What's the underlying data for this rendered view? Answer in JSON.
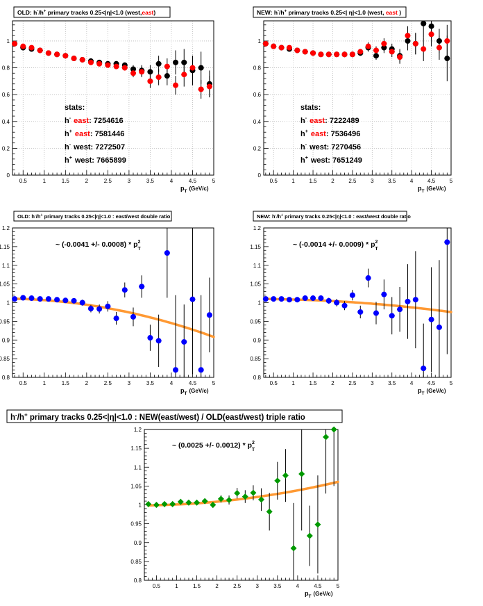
{
  "colors": {
    "black": "#000000",
    "red": "#ff0000",
    "blue": "#0000ff",
    "green": "#009900",
    "fit": "#ff9933",
    "grid": "#bbbbbb"
  },
  "panels": [
    {
      "key": "tl",
      "title_parts": [
        {
          "t": "OLD: h",
          "s": "n"
        },
        {
          "t": "-",
          "s": "sup"
        },
        {
          "t": "/h",
          "s": "n"
        },
        {
          "t": "+",
          "s": "sup"
        },
        {
          "t": " primary tracks 0.25<|η|<1.0 (west,",
          "s": "n"
        },
        {
          "t": "east",
          "s": "red"
        },
        {
          "t": ")",
          "s": "n"
        }
      ],
      "xaxis_label": "p",
      "xaxis_sub": "T",
      "xaxis_unit": "(GeV/c)",
      "stats": {
        "heading": "stats:",
        "rows": [
          {
            "pre": "h",
            "sign": "-",
            "word": "east",
            "value": "7254616",
            "word_red": true
          },
          {
            "pre": "h",
            "sign": "+",
            "word": "east",
            "value": "7581446",
            "word_red": true
          },
          {
            "pre": "h",
            "sign": "-",
            "word": "west",
            "value": "7272507",
            "word_red": false
          },
          {
            "pre": "h",
            "sign": "+",
            "word": "west",
            "value": "7665899",
            "word_red": false
          }
        ]
      }
    },
    {
      "key": "tr",
      "title_parts": [
        {
          "t": "NEW: h",
          "s": "n"
        },
        {
          "t": "-",
          "s": "sup"
        },
        {
          "t": "/h",
          "s": "n"
        },
        {
          "t": "+",
          "s": "sup"
        },
        {
          "t": " primary tracks 0.25<|   η|<1.0 (west,  ",
          "s": "n"
        },
        {
          "t": "east",
          "s": "red"
        },
        {
          "t": " )",
          "s": "n"
        }
      ],
      "xaxis_label": "p",
      "xaxis_sub": "T",
      "xaxis_unit": "(GeV/c)",
      "stats": {
        "heading": "stats:",
        "rows": [
          {
            "pre": "h",
            "sign": "-",
            "word": "east",
            "value": "7222489",
            "word_red": true
          },
          {
            "pre": "h",
            "sign": "+",
            "word": "east",
            "value": "7536496",
            "word_red": true
          },
          {
            "pre": "h",
            "sign": "-",
            "word": "west",
            "value": "7270456",
            "word_red": false
          },
          {
            "pre": "h",
            "sign": "+",
            "word": "west",
            "value": "7651249",
            "word_red": false
          }
        ]
      }
    },
    {
      "key": "ml",
      "title_parts": [
        {
          "t": "OLD: h",
          "s": "n"
        },
        {
          "t": "-",
          "s": "sup"
        },
        {
          "t": "/h",
          "s": "n"
        },
        {
          "t": "+",
          "s": "sup"
        },
        {
          "t": " primary tracks 0.25<|η|<1.0 : east/west double ratio",
          "s": "n"
        }
      ],
      "xaxis_label": "p",
      "xaxis_sub": "T",
      "xaxis_unit": "(GeV/c)",
      "fit_text": "~ (-0.0041 +/- 0.0008) * p",
      "fit_sup": "2",
      "fit_sub": "T"
    },
    {
      "key": "mr",
      "title_parts": [
        {
          "t": "NEW: h",
          "s": "n"
        },
        {
          "t": "-",
          "s": "sup"
        },
        {
          "t": "/h",
          "s": "n"
        },
        {
          "t": "+",
          "s": "sup"
        },
        {
          "t": " primary tracks 0.25<|η|<1.0 : east/west double ratio",
          "s": "n"
        }
      ],
      "xaxis_label": "p",
      "xaxis_sub": "T",
      "xaxis_unit": "(GeV/c)",
      "fit_text": "~ (-0.0014 +/- 0.0009) * p",
      "fit_sup": "2",
      "fit_sub": "T"
    },
    {
      "key": "bot",
      "title_parts": [
        {
          "t": "h",
          "s": "n"
        },
        {
          "t": "-",
          "s": "sup"
        },
        {
          "t": "/h",
          "s": "n"
        },
        {
          "t": "+",
          "s": "sup"
        },
        {
          "t": " primary tracks 0.25<|η|<1.0 : NEW(east/west) / OLD(east/west) triple ratio",
          "s": "n"
        }
      ],
      "xaxis_label": "p",
      "xaxis_sub": "T",
      "xaxis_unit": "(GeV/c)",
      "fit_text": "~ (0.0025 +/- 0.0012) * p",
      "fit_sup": "2",
      "fit_sub": "T"
    }
  ],
  "chart_data": [
    {
      "type": "scatter",
      "panel": "tl",
      "xlim": [
        0.25,
        5.0
      ],
      "ylim": [
        0,
        1.15
      ],
      "xticks": [
        0.5,
        1,
        1.5,
        2,
        2.5,
        3,
        3.5,
        4,
        4.5,
        5
      ],
      "yticks": [
        0,
        0.2,
        0.4,
        0.6,
        0.8,
        1
      ],
      "grid": true,
      "series": [
        {
          "color": "black",
          "x": [
            0.3,
            0.5,
            0.7,
            0.9,
            1.1,
            1.3,
            1.5,
            1.7,
            1.9,
            2.1,
            2.3,
            2.5,
            2.7,
            2.9,
            3.1,
            3.3,
            3.5,
            3.7,
            3.9,
            4.1,
            4.3,
            4.5,
            4.7,
            4.9
          ],
          "y": [
            0.98,
            0.95,
            0.94,
            0.93,
            0.91,
            0.9,
            0.89,
            0.87,
            0.86,
            0.85,
            0.84,
            0.83,
            0.83,
            0.82,
            0.79,
            0.78,
            0.77,
            0.83,
            0.74,
            0.84,
            0.84,
            0.78,
            0.8,
            0.68
          ],
          "err": [
            0.01,
            0.01,
            0.01,
            0.01,
            0.01,
            0.01,
            0.01,
            0.01,
            0.01,
            0.01,
            0.02,
            0.02,
            0.02,
            0.02,
            0.03,
            0.04,
            0.05,
            0.06,
            0.07,
            0.09,
            0.1,
            0.11,
            0.12,
            0.1
          ]
        },
        {
          "color": "red",
          "x": [
            0.3,
            0.5,
            0.7,
            0.9,
            1.1,
            1.3,
            1.5,
            1.7,
            1.9,
            2.1,
            2.3,
            2.5,
            2.7,
            2.9,
            3.1,
            3.3,
            3.5,
            3.7,
            3.9,
            4.1,
            4.3,
            4.5,
            4.7,
            4.9
          ],
          "y": [
            0.98,
            0.96,
            0.95,
            0.93,
            0.91,
            0.9,
            0.89,
            0.87,
            0.86,
            0.84,
            0.83,
            0.82,
            0.81,
            0.8,
            0.76,
            0.77,
            0.7,
            0.73,
            0.81,
            0.67,
            0.75,
            0.8,
            0.64,
            0.66
          ],
          "err": [
            0.01,
            0.01,
            0.01,
            0.01,
            0.01,
            0.01,
            0.01,
            0.01,
            0.01,
            0.01,
            0.02,
            0.02,
            0.02,
            0.02,
            0.03,
            0.04,
            0.05,
            0.06,
            0.06,
            0.07,
            0.09,
            0.09,
            0.07,
            0.08
          ]
        }
      ]
    },
    {
      "type": "scatter",
      "panel": "tr",
      "xlim": [
        0.25,
        5.0
      ],
      "ylim": [
        0,
        1.15
      ],
      "xticks": [
        0.5,
        1,
        1.5,
        2,
        2.5,
        3,
        3.5,
        4,
        4.5,
        5
      ],
      "yticks": [
        0,
        0.2,
        0.4,
        0.6,
        0.8,
        1
      ],
      "grid": true,
      "series": [
        {
          "color": "black",
          "x": [
            0.3,
            0.5,
            0.7,
            0.9,
            1.1,
            1.3,
            1.5,
            1.7,
            1.9,
            2.1,
            2.3,
            2.5,
            2.7,
            2.9,
            3.1,
            3.3,
            3.5,
            3.7,
            3.9,
            4.1,
            4.3,
            4.5,
            4.7,
            4.9
          ],
          "y": [
            0.98,
            0.96,
            0.95,
            0.94,
            0.93,
            0.92,
            0.91,
            0.9,
            0.9,
            0.9,
            0.9,
            0.9,
            0.91,
            0.95,
            0.89,
            0.95,
            0.94,
            0.89,
            1.0,
            0.98,
            1.13,
            1.11,
            1.0,
            0.87
          ],
          "err": [
            0.01,
            0.01,
            0.01,
            0.01,
            0.01,
            0.01,
            0.01,
            0.01,
            0.01,
            0.01,
            0.02,
            0.02,
            0.02,
            0.03,
            0.03,
            0.04,
            0.04,
            0.05,
            0.07,
            0.08,
            0.1,
            0.09,
            0.09,
            0.17
          ]
        },
        {
          "color": "red",
          "x": [
            0.3,
            0.5,
            0.7,
            0.9,
            1.1,
            1.3,
            1.5,
            1.7,
            1.9,
            2.1,
            2.3,
            2.5,
            2.7,
            2.9,
            3.1,
            3.3,
            3.5,
            3.7,
            3.9,
            4.1,
            4.3,
            4.5,
            4.7,
            4.9
          ],
          "y": [
            0.98,
            0.96,
            0.95,
            0.95,
            0.93,
            0.92,
            0.91,
            0.9,
            0.9,
            0.9,
            0.9,
            0.9,
            0.92,
            0.96,
            0.93,
            0.98,
            0.92,
            0.88,
            1.04,
            0.98,
            0.94,
            1.05,
            0.95,
            1.0
          ],
          "err": [
            0.01,
            0.01,
            0.01,
            0.01,
            0.01,
            0.01,
            0.01,
            0.01,
            0.01,
            0.01,
            0.02,
            0.02,
            0.02,
            0.03,
            0.03,
            0.04,
            0.04,
            0.05,
            0.07,
            0.08,
            0.09,
            0.09,
            0.09,
            0.12
          ]
        }
      ]
    },
    {
      "type": "scatter",
      "panel": "ml",
      "xlim": [
        0.25,
        5.0
      ],
      "ylim": [
        0.8,
        1.2
      ],
      "xticks": [
        0.5,
        1,
        1.5,
        2,
        2.5,
        3,
        3.5,
        4,
        4.5,
        5
      ],
      "yticks": [
        0.8,
        0.85,
        0.9,
        0.95,
        1,
        1.05,
        1.1,
        1.15,
        1.2
      ],
      "grid": false,
      "fit": {
        "p0": 1.0108,
        "p2": -0.0041
      },
      "series": [
        {
          "color": "blue",
          "x": [
            0.3,
            0.5,
            0.7,
            0.9,
            1.1,
            1.3,
            1.5,
            1.7,
            1.9,
            2.1,
            2.3,
            2.5,
            2.7,
            2.9,
            3.1,
            3.3,
            3.5,
            3.7,
            3.9,
            4.1,
            4.3,
            4.5,
            4.7,
            4.9
          ],
          "y": [
            1.01,
            1.013,
            1.012,
            1.01,
            1.01,
            1.008,
            1.006,
            1.005,
            1.0,
            0.984,
            0.983,
            0.99,
            0.958,
            1.034,
            0.962,
            1.043,
            0.906,
            0.898,
            1.133,
            0.82,
            0.895,
            1.009,
            0.82,
            0.967
          ],
          "err": [
            0.005,
            0.005,
            0.005,
            0.005,
            0.005,
            0.006,
            0.006,
            0.007,
            0.008,
            0.01,
            0.012,
            0.014,
            0.017,
            0.02,
            0.025,
            0.03,
            0.035,
            0.07,
            0.12,
            0.2,
            0.1,
            0.2,
            0.2,
            0.1
          ]
        }
      ]
    },
    {
      "type": "scatter",
      "panel": "mr",
      "xlim": [
        0.25,
        5.0
      ],
      "ylim": [
        0.8,
        1.2
      ],
      "xticks": [
        0.5,
        1,
        1.5,
        2,
        2.5,
        3,
        3.5,
        4,
        4.5,
        5
      ],
      "yticks": [
        0.8,
        0.85,
        0.9,
        0.95,
        1,
        1.05,
        1.1,
        1.15,
        1.2
      ],
      "grid": false,
      "fit": {
        "p0": 1.0098,
        "p2": -0.0014
      },
      "series": [
        {
          "color": "blue",
          "x": [
            0.3,
            0.5,
            0.7,
            0.9,
            1.1,
            1.3,
            1.5,
            1.7,
            1.9,
            2.1,
            2.3,
            2.5,
            2.7,
            2.9,
            3.1,
            3.3,
            3.5,
            3.7,
            3.9,
            4.1,
            4.3,
            4.5,
            4.7,
            4.9
          ],
          "y": [
            1.01,
            1.01,
            1.01,
            1.008,
            1.008,
            1.012,
            1.012,
            1.012,
            1.005,
            1.0,
            0.992,
            1.02,
            0.975,
            1.066,
            0.972,
            1.022,
            0.965,
            0.982,
            1.003,
            1.008,
            0.824,
            0.955,
            0.934,
            1.162
          ],
          "err": [
            0.005,
            0.005,
            0.005,
            0.005,
            0.005,
            0.006,
            0.006,
            0.007,
            0.008,
            0.01,
            0.012,
            0.014,
            0.017,
            0.025,
            0.03,
            0.04,
            0.05,
            0.06,
            0.1,
            0.13,
            0.12,
            0.14,
            0.18,
            0.3
          ]
        }
      ]
    },
    {
      "type": "scatter",
      "panel": "bot",
      "xlim": [
        0.2,
        5.0
      ],
      "ylim": [
        0.8,
        1.2
      ],
      "xticks": [
        0.5,
        1,
        1.5,
        2,
        2.5,
        3,
        3.5,
        4,
        4.5,
        5
      ],
      "yticks": [
        0.8,
        0.85,
        0.9,
        0.95,
        1,
        1.05,
        1.1,
        1.15,
        1.2
      ],
      "grid": false,
      "fit": {
        "p0": 0.9985,
        "p2": 0.0025
      },
      "series": [
        {
          "color": "green",
          "x": [
            0.3,
            0.5,
            0.7,
            0.9,
            1.1,
            1.3,
            1.5,
            1.7,
            1.9,
            2.1,
            2.3,
            2.5,
            2.7,
            2.9,
            3.1,
            3.3,
            3.5,
            3.7,
            3.9,
            4.1,
            4.3,
            4.5,
            4.7,
            4.9
          ],
          "y": [
            1.002,
            1.0,
            1.002,
            1.002,
            1.008,
            1.006,
            1.006,
            1.01,
            1.0,
            1.016,
            1.013,
            1.031,
            1.022,
            1.032,
            1.014,
            0.982,
            1.064,
            1.078,
            0.885,
            1.082,
            0.918,
            0.948,
            1.18,
            1.2
          ],
          "err": [
            0.005,
            0.005,
            0.005,
            0.005,
            0.005,
            0.006,
            0.006,
            0.007,
            0.008,
            0.01,
            0.012,
            0.014,
            0.017,
            0.02,
            0.03,
            0.05,
            0.05,
            0.07,
            0.12,
            0.15,
            0.08,
            0.13,
            0.15,
            0.15
          ]
        }
      ]
    }
  ]
}
